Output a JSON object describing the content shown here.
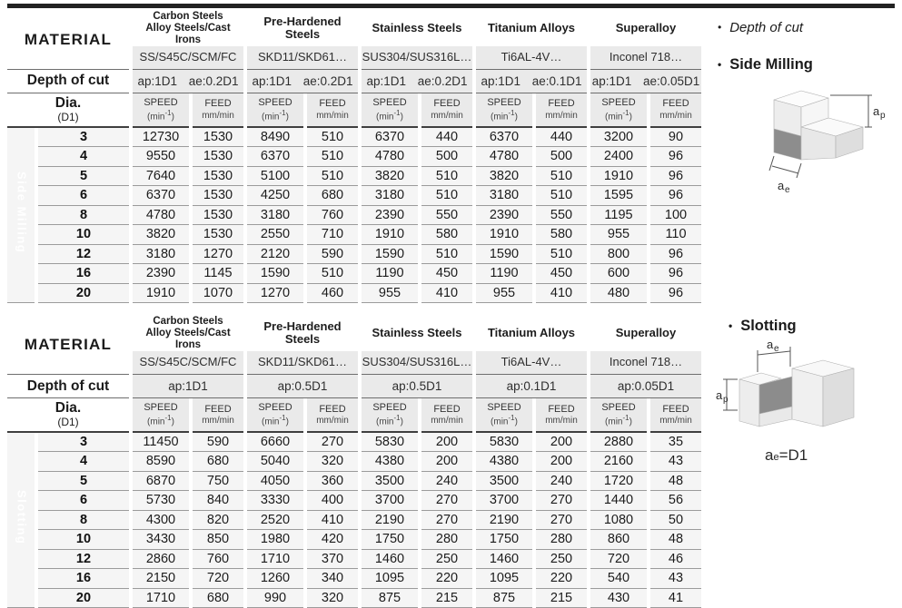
{
  "labels": {
    "material": "MATERIAL",
    "depth_of_cut": "Depth of cut",
    "dia": "Dia.",
    "dia_sub": "(D1)",
    "speed": "SPEED",
    "speed_unit_base": "(min",
    "speed_unit_sup": "-1",
    "speed_unit_close": ")",
    "feed": "FEED",
    "feed_unit": "mm/min"
  },
  "materials": [
    {
      "name_lines": [
        "Carbon Steels",
        "Alloy Steels/Cast Irons"
      ],
      "grade": "SS/S45C/SCM/FC"
    },
    {
      "name_lines": [
        "Pre-Hardened Steels"
      ],
      "grade": "SKD11/SKD61…"
    },
    {
      "name_lines": [
        "Stainless Steels"
      ],
      "grade": "SUS304/SUS316L…"
    },
    {
      "name_lines": [
        "Titanium Alloys"
      ],
      "grade": "Ti6AL-4V…"
    },
    {
      "name_lines": [
        "Superalloy"
      ],
      "grade": "Inconel 718…"
    }
  ],
  "tables": [
    {
      "section_label": "Side Milling",
      "depths": [
        "ap:1D1 ae:0.2D1",
        "ap:1D1 ae:0.2D1",
        "ap:1D1 ae:0.2D1",
        "ap:1D1 ae:0.1D1",
        "ap:1D1 ae:0.05D1"
      ],
      "diameters": [
        "3",
        "4",
        "5",
        "6",
        "8",
        "10",
        "12",
        "16",
        "20"
      ],
      "rows": [
        [
          "12730",
          "1530",
          "8490",
          "510",
          "6370",
          "440",
          "6370",
          "440",
          "3200",
          "90"
        ],
        [
          "9550",
          "1530",
          "6370",
          "510",
          "4780",
          "500",
          "4780",
          "500",
          "2400",
          "96"
        ],
        [
          "7640",
          "1530",
          "5100",
          "510",
          "3820",
          "510",
          "3820",
          "510",
          "1910",
          "96"
        ],
        [
          "6370",
          "1530",
          "4250",
          "680",
          "3180",
          "510",
          "3180",
          "510",
          "1595",
          "96"
        ],
        [
          "4780",
          "1530",
          "3180",
          "760",
          "2390",
          "550",
          "2390",
          "550",
          "1195",
          "100"
        ],
        [
          "3820",
          "1530",
          "2550",
          "710",
          "1910",
          "580",
          "1910",
          "580",
          "955",
          "110"
        ],
        [
          "3180",
          "1270",
          "2120",
          "590",
          "1590",
          "510",
          "1590",
          "510",
          "800",
          "96"
        ],
        [
          "2390",
          "1145",
          "1590",
          "510",
          "1190",
          "450",
          "1190",
          "450",
          "600",
          "96"
        ],
        [
          "1910",
          "1070",
          "1270",
          "460",
          "955",
          "410",
          "955",
          "410",
          "480",
          "96"
        ]
      ]
    },
    {
      "section_label": "Slotting",
      "depths": [
        "ap:1D1",
        "ap:0.5D1",
        "ap:0.5D1",
        "ap:0.1D1",
        "ap:0.05D1"
      ],
      "diameters": [
        "3",
        "4",
        "5",
        "6",
        "8",
        "10",
        "12",
        "16",
        "20"
      ],
      "rows": [
        [
          "11450",
          "590",
          "6660",
          "270",
          "5830",
          "200",
          "5830",
          "200",
          "2880",
          "35"
        ],
        [
          "8590",
          "680",
          "5040",
          "320",
          "4380",
          "200",
          "4380",
          "200",
          "2160",
          "43"
        ],
        [
          "6870",
          "750",
          "4050",
          "360",
          "3500",
          "240",
          "3500",
          "240",
          "1720",
          "48"
        ],
        [
          "5730",
          "840",
          "3330",
          "400",
          "3700",
          "270",
          "3700",
          "270",
          "1440",
          "56"
        ],
        [
          "4300",
          "820",
          "2520",
          "410",
          "2190",
          "270",
          "2190",
          "270",
          "1080",
          "50"
        ],
        [
          "3430",
          "850",
          "1980",
          "420",
          "1750",
          "280",
          "1750",
          "280",
          "860",
          "48"
        ],
        [
          "2860",
          "760",
          "1710",
          "370",
          "1460",
          "250",
          "1460",
          "250",
          "720",
          "46"
        ],
        [
          "2150",
          "720",
          "1260",
          "340",
          "1095",
          "220",
          "1095",
          "220",
          "540",
          "43"
        ],
        [
          "1710",
          "680",
          "990",
          "320",
          "875",
          "215",
          "875",
          "215",
          "430",
          "41"
        ]
      ]
    }
  ],
  "side_panel": {
    "bullet_glyph": "•",
    "bullet_depth_of_cut": "Depth of cut",
    "bullet_side_milling": "Side Milling",
    "bullet_slotting": "Slotting",
    "dim_a": "a",
    "dim_p": "p",
    "dim_e": "e",
    "ae_equals": "=D1"
  },
  "colors": {
    "top_rule": "#222222",
    "section_bar": "#b3b3b3",
    "header_cell": "#eaeaea",
    "data_cell": "#f5f5f5",
    "dark_face": "#8d8d8d"
  }
}
